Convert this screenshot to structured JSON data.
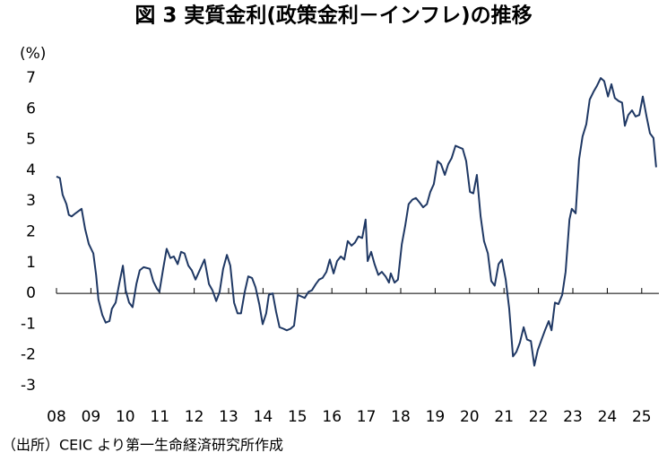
{
  "chart_data": {
    "type": "line",
    "title": "図 3  実質金利(政策金利－インフレ)の推移",
    "y_label": "(%)",
    "source": "（出所）CEIC より第一生命経済研究所作成",
    "title_color": "#0a2bd0",
    "negative_tick_color": "#e00000",
    "grid": false,
    "xlim": [
      2008,
      2025.5
    ],
    "ylim": [
      -3,
      7
    ],
    "yticks": [
      -3,
      -2,
      -1,
      0,
      1,
      2,
      3,
      4,
      5,
      6,
      7
    ],
    "xticks": [
      {
        "value": 2008,
        "label": "08"
      },
      {
        "value": 2009,
        "label": "09"
      },
      {
        "value": 2010,
        "label": "10"
      },
      {
        "value": 2011,
        "label": "11"
      },
      {
        "value": 2012,
        "label": "12"
      },
      {
        "value": 2013,
        "label": "13"
      },
      {
        "value": 2014,
        "label": "14"
      },
      {
        "value": 2015,
        "label": "15"
      },
      {
        "value": 2016,
        "label": "16"
      },
      {
        "value": 2017,
        "label": "17"
      },
      {
        "value": 2018,
        "label": "18"
      },
      {
        "value": 2019,
        "label": "19"
      },
      {
        "value": 2020,
        "label": "20"
      },
      {
        "value": 2021,
        "label": "21"
      },
      {
        "value": 2022,
        "label": "22"
      },
      {
        "value": 2023,
        "label": "23"
      },
      {
        "value": 2024,
        "label": "24"
      },
      {
        "value": 2025,
        "label": "25"
      }
    ],
    "x": [
      2008.0,
      2008.1,
      2008.18,
      2008.29,
      2008.36,
      2008.44,
      2008.55,
      2008.73,
      2008.83,
      2008.94,
      2009.07,
      2009.15,
      2009.22,
      2009.33,
      2009.43,
      2009.54,
      2009.61,
      2009.72,
      2009.82,
      2009.93,
      2010.01,
      2010.11,
      2010.21,
      2010.32,
      2010.42,
      2010.53,
      2010.71,
      2010.81,
      2010.92,
      2010.99,
      2011.1,
      2011.2,
      2011.31,
      2011.41,
      2011.52,
      2011.62,
      2011.72,
      2011.83,
      2011.93,
      2012.04,
      2012.14,
      2012.3,
      2012.43,
      2012.53,
      2012.64,
      2012.74,
      2012.84,
      2012.95,
      2013.05,
      2013.16,
      2013.26,
      2013.36,
      2013.47,
      2013.57,
      2013.68,
      2013.78,
      2013.89,
      2013.99,
      2014.09,
      2014.17,
      2014.28,
      2014.38,
      2014.48,
      2014.59,
      2014.69,
      2014.8,
      2014.9,
      2015.01,
      2015.11,
      2015.21,
      2015.32,
      2015.42,
      2015.53,
      2015.63,
      2015.73,
      2015.84,
      2015.94,
      2016.05,
      2016.15,
      2016.26,
      2016.36,
      2016.46,
      2016.57,
      2016.67,
      2016.77,
      2016.88,
      2016.98,
      2017.04,
      2017.14,
      2017.24,
      2017.35,
      2017.45,
      2017.56,
      2017.66,
      2017.71,
      2017.82,
      2017.92,
      2018.03,
      2018.13,
      2018.23,
      2018.34,
      2018.44,
      2018.55,
      2018.65,
      2018.76,
      2018.86,
      2018.96,
      2019.07,
      2019.17,
      2019.28,
      2019.38,
      2019.48,
      2019.59,
      2019.69,
      2019.8,
      2019.9,
      2020.01,
      2020.11,
      2020.21,
      2020.32,
      2020.42,
      2020.53,
      2020.63,
      2020.73,
      2020.84,
      2020.94,
      2021.05,
      2021.15,
      2021.26,
      2021.36,
      2021.46,
      2021.57,
      2021.67,
      2021.78,
      2021.88,
      2021.98,
      2022.09,
      2022.19,
      2022.3,
      2022.38,
      2022.48,
      2022.58,
      2022.69,
      2022.79,
      2022.9,
      2022.97,
      2023.08,
      2023.18,
      2023.28,
      2023.39,
      2023.49,
      2023.6,
      2023.7,
      2023.81,
      2023.91,
      2024.02,
      2024.12,
      2024.22,
      2024.33,
      2024.43,
      2024.51,
      2024.61,
      2024.72,
      2024.82,
      2024.93,
      2025.03,
      2025.14,
      2025.24,
      2025.34,
      2025.42
    ],
    "series": [
      {
        "name": "実質金利",
        "color": "#1f3864",
        "values": [
          3.8,
          3.75,
          3.2,
          2.9,
          2.55,
          2.5,
          2.6,
          2.75,
          2.1,
          1.6,
          1.3,
          0.6,
          -0.2,
          -0.7,
          -0.95,
          -0.9,
          -0.5,
          -0.3,
          0.3,
          0.9,
          0.1,
          -0.3,
          -0.45,
          0.3,
          0.75,
          0.85,
          0.8,
          0.4,
          0.15,
          0.05,
          0.8,
          1.45,
          1.15,
          1.2,
          0.95,
          1.35,
          1.3,
          0.9,
          0.75,
          0.45,
          0.7,
          1.1,
          0.3,
          0.1,
          -0.25,
          0.05,
          0.8,
          1.25,
          0.9,
          -0.3,
          -0.65,
          -0.65,
          0.05,
          0.55,
          0.5,
          0.2,
          -0.35,
          -1.0,
          -0.65,
          -0.05,
          0.0,
          -0.6,
          -1.1,
          -1.15,
          -1.2,
          -1.15,
          -1.05,
          -0.05,
          -0.1,
          -0.15,
          0.05,
          0.1,
          0.3,
          0.45,
          0.5,
          0.7,
          1.1,
          0.65,
          1.05,
          1.2,
          1.1,
          1.7,
          1.55,
          1.65,
          1.85,
          1.8,
          2.4,
          1.05,
          1.35,
          0.95,
          0.6,
          0.7,
          0.55,
          0.35,
          0.65,
          0.35,
          0.45,
          1.6,
          2.2,
          2.9,
          3.05,
          3.1,
          2.95,
          2.8,
          2.9,
          3.3,
          3.55,
          4.3,
          4.2,
          3.85,
          4.2,
          4.4,
          4.8,
          4.75,
          4.7,
          4.3,
          3.3,
          3.25,
          3.85,
          2.5,
          1.7,
          1.3,
          0.4,
          0.25,
          0.95,
          1.1,
          0.45,
          -0.5,
          -2.05,
          -1.9,
          -1.6,
          -1.1,
          -1.5,
          -1.55,
          -2.35,
          -1.85,
          -1.5,
          -1.2,
          -0.9,
          -1.2,
          -0.3,
          -0.35,
          -0.05,
          0.7,
          2.4,
          2.75,
          2.6,
          4.35,
          5.1,
          5.5,
          6.3,
          6.55,
          6.75,
          7.0,
          6.9,
          6.4,
          6.8,
          6.35,
          6.25,
          6.2,
          5.45,
          5.8,
          5.95,
          5.75,
          5.8,
          6.4,
          5.75,
          5.2,
          5.05,
          4.1
        ]
      }
    ]
  }
}
